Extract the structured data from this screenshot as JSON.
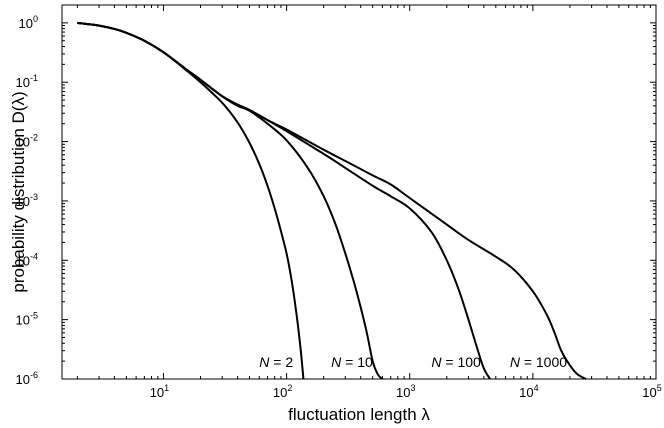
{
  "chart_data": {
    "type": "line",
    "title": "",
    "xlabel": "fluctuation length λ",
    "ylabel": "probability distribution D(λ)",
    "xscale": "log",
    "yscale": "log",
    "xlim": [
      1.5,
      100000
    ],
    "ylim": [
      1e-06,
      2
    ],
    "grid": false,
    "legend": "none",
    "x_ticks": [
      {
        "base": "10",
        "exp": "1",
        "value": 10
      },
      {
        "base": "10",
        "exp": "2",
        "value": 100
      },
      {
        "base": "10",
        "exp": "3",
        "value": 1000
      },
      {
        "base": "10",
        "exp": "4",
        "value": 10000
      },
      {
        "base": "10",
        "exp": "5",
        "value": 100000
      }
    ],
    "y_ticks": [
      {
        "base": "10",
        "exp": "0",
        "value": 1
      },
      {
        "base": "10",
        "exp": "-1",
        "value": 0.1
      },
      {
        "base": "10",
        "exp": "-2",
        "value": 0.01
      },
      {
        "base": "10",
        "exp": "-3",
        "value": 0.001
      },
      {
        "base": "10",
        "exp": "-4",
        "value": 0.0001
      },
      {
        "base": "10",
        "exp": "-5",
        "value": 1e-05
      },
      {
        "base": "10",
        "exp": "-6",
        "value": 1e-06
      }
    ],
    "series": [
      {
        "label_var": "N",
        "label_eq": " = 2",
        "label_pos": [
          60,
          1.6e-06
        ],
        "x": [
          2,
          3,
          4,
          5,
          7,
          10,
          15,
          20,
          30,
          40,
          50,
          60,
          70,
          80,
          90,
          100,
          110,
          120,
          130,
          137
        ],
        "y": [
          1,
          0.9,
          0.79,
          0.68,
          0.5,
          0.32,
          0.165,
          0.1,
          0.045,
          0.021,
          0.0095,
          0.0042,
          0.0018,
          0.00075,
          0.00031,
          0.00013,
          4.5e-05,
          1.3e-05,
          3.2e-06,
          1e-06
        ]
      },
      {
        "label_var": "N",
        "label_eq": " = 10",
        "label_pos": [
          230,
          1.6e-06
        ],
        "x": [
          2,
          3,
          4,
          5,
          7,
          10,
          15,
          20,
          30,
          40,
          50,
          70,
          100,
          150,
          200,
          250,
          300,
          350,
          400,
          450,
          500,
          550,
          600
        ],
        "y": [
          1,
          0.9,
          0.79,
          0.68,
          0.5,
          0.32,
          0.17,
          0.11,
          0.058,
          0.04,
          0.033,
          0.02,
          0.0105,
          0.0035,
          0.0012,
          0.0004,
          0.00013,
          4.5e-05,
          1.6e-05,
          5.8e-06,
          2e-06,
          1.2e-06,
          1e-06
        ]
      },
      {
        "label_var": "N",
        "label_eq": " = 100",
        "label_pos": [
          1500,
          1.6e-06
        ],
        "x": [
          2,
          3,
          4,
          5,
          7,
          10,
          15,
          20,
          30,
          40,
          50,
          70,
          100,
          200,
          300,
          500,
          700,
          1000,
          1500,
          2000,
          2500,
          3000,
          3500,
          4000,
          4500
        ],
        "y": [
          1,
          0.9,
          0.79,
          0.68,
          0.5,
          0.32,
          0.17,
          0.11,
          0.058,
          0.042,
          0.034,
          0.023,
          0.015,
          0.0062,
          0.0036,
          0.0018,
          0.0012,
          0.00075,
          0.0003,
          0.0001,
          3.2e-05,
          1e-05,
          3.5e-06,
          1.5e-06,
          1e-06
        ]
      },
      {
        "label_var": "N",
        "label_eq": " = 1000",
        "label_pos": [
          6500,
          1.6e-06
        ],
        "x": [
          2,
          3,
          4,
          5,
          7,
          10,
          15,
          20,
          30,
          40,
          50,
          70,
          100,
          200,
          300,
          500,
          700,
          1000,
          2000,
          3000,
          5000,
          7000,
          10000,
          13000,
          15000,
          17000,
          20000,
          23000,
          27000
        ],
        "y": [
          1,
          0.9,
          0.79,
          0.68,
          0.5,
          0.32,
          0.17,
          0.11,
          0.058,
          0.042,
          0.034,
          0.023,
          0.016,
          0.0073,
          0.0047,
          0.0027,
          0.0019,
          0.00112,
          0.0004,
          0.00022,
          0.000115,
          7e-05,
          3e-05,
          1.2e-05,
          6e-06,
          3e-06,
          1.7e-06,
          1.2e-06,
          1e-06
        ]
      }
    ]
  }
}
